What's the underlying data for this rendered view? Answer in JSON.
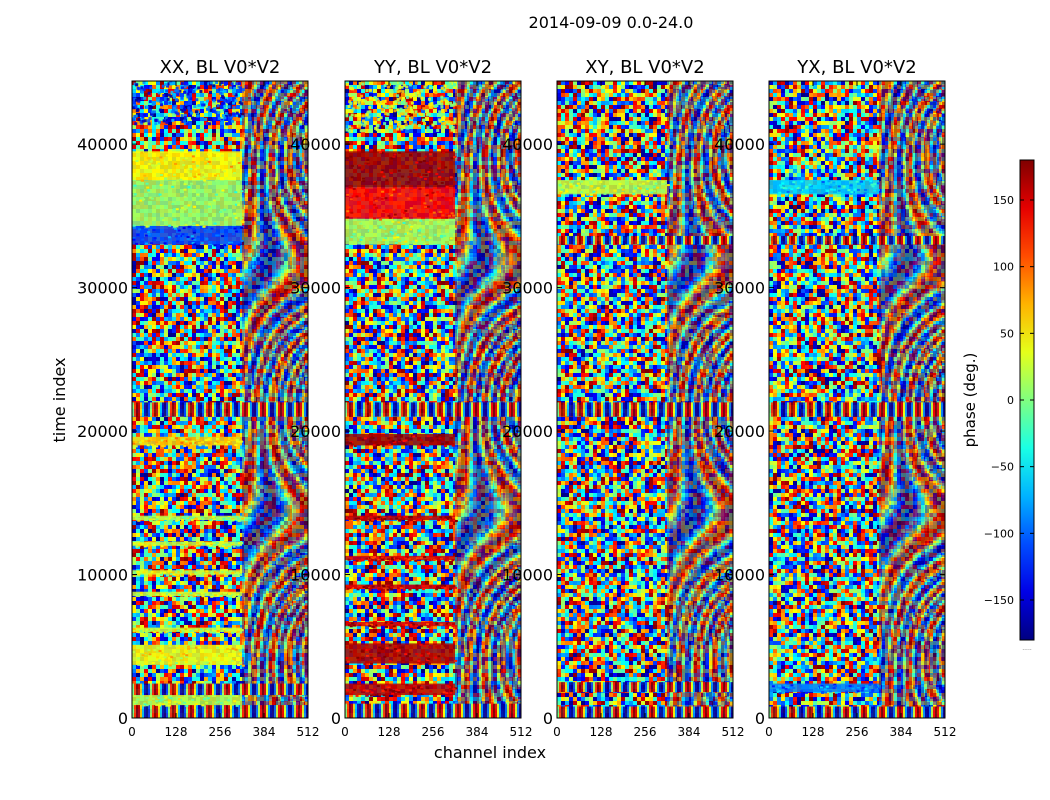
{
  "suptitle": "2014-09-09 0.0-24.0",
  "chart_data": {
    "type": "heatmap",
    "title": "2014-09-09 0.0-24.0",
    "xlabel": "channel index",
    "ylabel": "time index",
    "xlim": [
      0,
      512
    ],
    "ylim": [
      0,
      44400
    ],
    "x_ticks": [
      0,
      128,
      256,
      384,
      512
    ],
    "y_ticks": [
      0,
      10000,
      20000,
      30000,
      40000
    ],
    "colormap": "jet",
    "colorbar": {
      "label": "phase (deg.)",
      "range": [
        -180,
        180
      ],
      "ticks": [
        -150,
        -100,
        -50,
        0,
        50,
        100,
        150
      ],
      "tick_labels": [
        "−150",
        "−100",
        "−50",
        "0",
        "50",
        "100",
        "150"
      ],
      "offset_text": "....."
    },
    "panels": [
      {
        "title": "XX, BL V0*V2",
        "features": [
          {
            "t0": 0,
            "t1": 900,
            "phase": 0,
            "kind": "fringe"
          },
          {
            "t0": 900,
            "t1": 1600,
            "phase": 20,
            "kind": "band"
          },
          {
            "t0": 1600,
            "t1": 2400,
            "phase": 0,
            "kind": "fringe"
          },
          {
            "t0": 3700,
            "t1": 5100,
            "phase": 40,
            "kind": "band"
          },
          {
            "t0": 6000,
            "t1": 6300,
            "phase": 30,
            "kind": "band"
          },
          {
            "t0": 8500,
            "t1": 8800,
            "phase": 30,
            "kind": "band"
          },
          {
            "t0": 10000,
            "t1": 10300,
            "phase": 30,
            "kind": "band"
          },
          {
            "t0": 12000,
            "t1": 12300,
            "phase": 30,
            "kind": "band"
          },
          {
            "t0": 13800,
            "t1": 14100,
            "phase": 20,
            "kind": "band"
          },
          {
            "t0": 19000,
            "t1": 19600,
            "phase": 60,
            "kind": "band"
          },
          {
            "t0": 21000,
            "t1": 22000,
            "phase": 0,
            "kind": "fringe"
          },
          {
            "t0": 33000,
            "t1": 34300,
            "phase": -110,
            "kind": "band"
          },
          {
            "t0": 34300,
            "t1": 37500,
            "phase": 10,
            "kind": "band"
          },
          {
            "t0": 37500,
            "t1": 39500,
            "phase": 45,
            "kind": "band"
          },
          {
            "t0": 41500,
            "t1": 44400,
            "phase": -120,
            "kind": "noise"
          }
        ]
      },
      {
        "title": "YY, BL V0*V2",
        "features": [
          {
            "t0": 0,
            "t1": 1000,
            "phase": 150,
            "kind": "fringe"
          },
          {
            "t0": 1600,
            "t1": 2400,
            "phase": 160,
            "kind": "band"
          },
          {
            "t0": 3800,
            "t1": 5200,
            "phase": 165,
            "kind": "band"
          },
          {
            "t0": 6400,
            "t1": 6700,
            "phase": 150,
            "kind": "band"
          },
          {
            "t0": 9000,
            "t1": 9300,
            "phase": 150,
            "kind": "band"
          },
          {
            "t0": 11000,
            "t1": 11300,
            "phase": 150,
            "kind": "band"
          },
          {
            "t0": 13800,
            "t1": 14100,
            "phase": 160,
            "kind": "band"
          },
          {
            "t0": 19000,
            "t1": 19800,
            "phase": 170,
            "kind": "band"
          },
          {
            "t0": 21000,
            "t1": 22000,
            "phase": 0,
            "kind": "fringe"
          },
          {
            "t0": 33000,
            "t1": 34800,
            "phase": 15,
            "kind": "band"
          },
          {
            "t0": 34800,
            "t1": 37000,
            "phase": 135,
            "kind": "band"
          },
          {
            "t0": 37000,
            "t1": 39500,
            "phase": 170,
            "kind": "band"
          },
          {
            "t0": 41000,
            "t1": 44400,
            "phase": 30,
            "kind": "noise"
          }
        ]
      },
      {
        "title": "XY, BL V0*V2",
        "features": [
          {
            "t0": 0,
            "t1": 800,
            "phase": 0,
            "kind": "fringe"
          },
          {
            "t0": 1800,
            "t1": 2500,
            "phase": 0,
            "kind": "fringe"
          },
          {
            "t0": 21000,
            "t1": 22000,
            "phase": 0,
            "kind": "fringe"
          },
          {
            "t0": 33000,
            "t1": 33600,
            "phase": 0,
            "kind": "fringe"
          },
          {
            "t0": 36500,
            "t1": 37500,
            "phase": 20,
            "kind": "band"
          }
        ]
      },
      {
        "title": "YX, BL V0*V2",
        "features": [
          {
            "t0": 0,
            "t1": 800,
            "phase": 0,
            "kind": "fringe"
          },
          {
            "t0": 1800,
            "t1": 2400,
            "phase": -90,
            "kind": "band"
          },
          {
            "t0": 21000,
            "t1": 22000,
            "phase": 0,
            "kind": "fringe"
          },
          {
            "t0": 33000,
            "t1": 33600,
            "phase": 0,
            "kind": "fringe"
          },
          {
            "t0": 36500,
            "t1": 37500,
            "phase": -60,
            "kind": "band"
          }
        ]
      }
    ]
  }
}
